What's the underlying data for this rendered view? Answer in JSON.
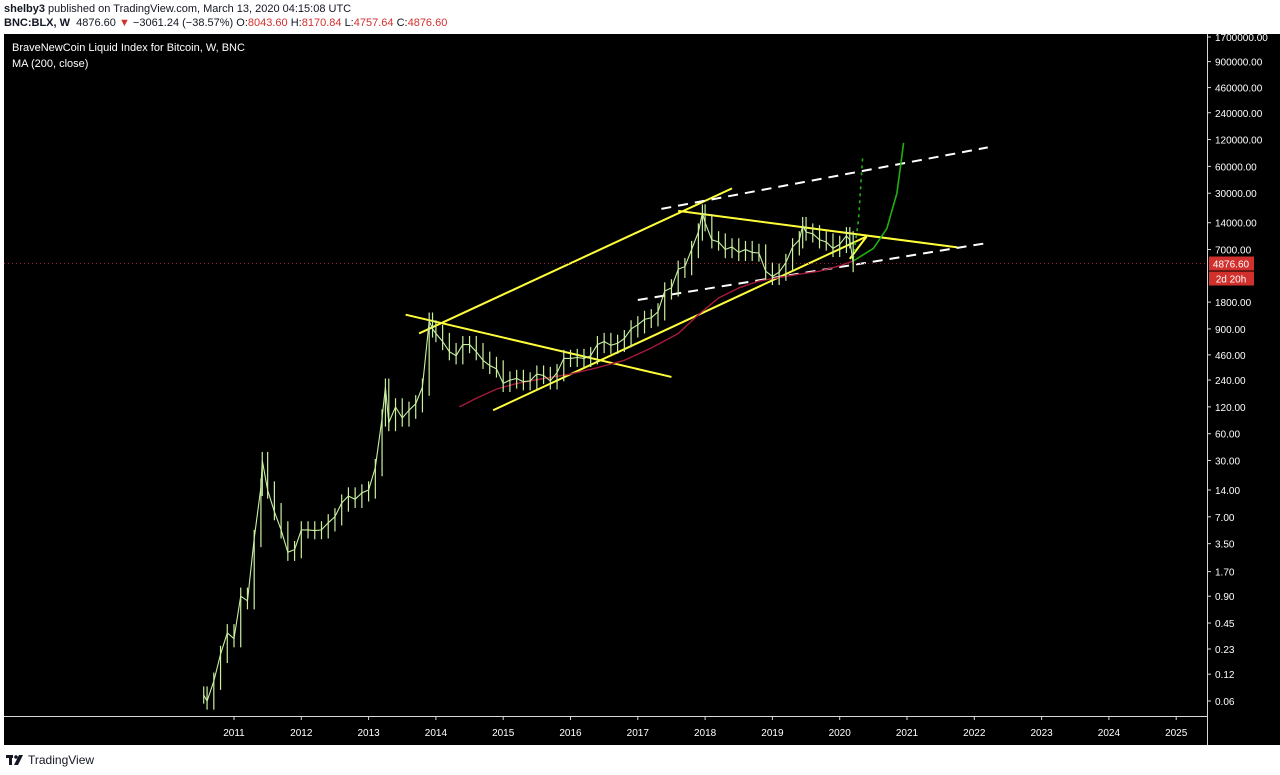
{
  "header": {
    "author": "shelby3",
    "published_text": "published on TradingView.com, March 13, 2020 04:15:08 UTC",
    "symbol": "BNC:BLX, W",
    "last": "4876.60",
    "change": "−3061.24 (−38.57%)",
    "o_label": "O:",
    "o_value": "8043.60",
    "h_label": "H:",
    "h_value": "8170.84",
    "l_label": "L:",
    "l_value": "4757.64",
    "c_label": "C:",
    "c_value": "4876.60"
  },
  "legend": {
    "title": "BraveNewCoin Liquid Index for Bitcoin, W, BNC",
    "indicator": "MA (200, close)"
  },
  "price_label": {
    "value": "4876.60",
    "countdown": "2d 20h",
    "color": "#d0312d"
  },
  "footer": {
    "brand": "TradingView"
  },
  "colors": {
    "background": "#000000",
    "axis_text": "#ffffff",
    "trendline": "#ffff3a",
    "dashed": "#ffffff",
    "projection": "#22b010",
    "ma": "#a31a3a",
    "candle": "#c8f0a0"
  },
  "chart_data": {
    "type": "line",
    "title": "BraveNewCoin Liquid Index for Bitcoin, W, BNC",
    "y_scale": "log",
    "y_ticks": [
      1700000,
      900000,
      460000,
      240000,
      120000,
      60000,
      30000,
      14000,
      7000,
      1800,
      900,
      460,
      240,
      120,
      60,
      30,
      14,
      7,
      3.5,
      1.7,
      0.9,
      0.45,
      0.23,
      0.12,
      0.06
    ],
    "y_tick_labels": [
      "1700000.00",
      "900000.00",
      "460000.00",
      "240000.00",
      "120000.00",
      "60000.00",
      "30000.00",
      "14000.00",
      "7000.00",
      "1800.00",
      "900.00",
      "460.00",
      "240.00",
      "120.00",
      "60.00",
      "30.00",
      "14.00",
      "7.00",
      "3.50",
      "1.70",
      "0.90",
      "0.45",
      "0.23",
      "0.12",
      "0.06"
    ],
    "x_ticks": [
      2011,
      2012,
      2013,
      2014,
      2015,
      2016,
      2017,
      2018,
      2019,
      2020,
      2021,
      2022,
      2023,
      2024,
      2025
    ],
    "x_tick_labels": [
      "2011",
      "2012",
      "2013",
      "2014",
      "2015",
      "2016",
      "2017",
      "2018",
      "2019",
      "2020",
      "2021",
      "2022",
      "2023",
      "2024",
      "2025"
    ],
    "series": [
      {
        "key": "price",
        "values": [
          [
            2010.55,
            0.07
          ],
          [
            2010.6,
            0.06
          ],
          [
            2010.7,
            0.1
          ],
          [
            2010.8,
            0.2
          ],
          [
            2010.9,
            0.35
          ],
          [
            2011.0,
            0.3
          ],
          [
            2011.1,
            0.9
          ],
          [
            2011.2,
            0.8
          ],
          [
            2011.3,
            4
          ],
          [
            2011.4,
            15
          ],
          [
            2011.42,
            30
          ],
          [
            2011.5,
            14
          ],
          [
            2011.6,
            8
          ],
          [
            2011.7,
            5
          ],
          [
            2011.8,
            2.8
          ],
          [
            2011.9,
            3.0
          ],
          [
            2012.0,
            5
          ],
          [
            2012.1,
            5
          ],
          [
            2012.2,
            4.9
          ],
          [
            2012.3,
            5
          ],
          [
            2012.4,
            6
          ],
          [
            2012.5,
            7
          ],
          [
            2012.6,
            10
          ],
          [
            2012.7,
            12
          ],
          [
            2012.8,
            11
          ],
          [
            2012.9,
            13
          ],
          [
            2013.0,
            14
          ],
          [
            2013.1,
            25
          ],
          [
            2013.2,
            90
          ],
          [
            2013.25,
            200
          ],
          [
            2013.3,
            80
          ],
          [
            2013.4,
            120
          ],
          [
            2013.5,
            90
          ],
          [
            2013.6,
            110
          ],
          [
            2013.7,
            130
          ],
          [
            2013.8,
            200
          ],
          [
            2013.9,
            1100
          ],
          [
            2013.95,
            900
          ],
          [
            2014.0,
            800
          ],
          [
            2014.1,
            650
          ],
          [
            2014.2,
            500
          ],
          [
            2014.3,
            450
          ],
          [
            2014.4,
            600
          ],
          [
            2014.5,
            600
          ],
          [
            2014.6,
            500
          ],
          [
            2014.7,
            400
          ],
          [
            2014.8,
            350
          ],
          [
            2014.9,
            320
          ],
          [
            2015.0,
            220
          ],
          [
            2015.1,
            240
          ],
          [
            2015.2,
            250
          ],
          [
            2015.3,
            230
          ],
          [
            2015.4,
            235
          ],
          [
            2015.5,
            280
          ],
          [
            2015.6,
            270
          ],
          [
            2015.7,
            235
          ],
          [
            2015.8,
            290
          ],
          [
            2015.9,
            420
          ],
          [
            2016.0,
            420
          ],
          [
            2016.1,
            430
          ],
          [
            2016.2,
            420
          ],
          [
            2016.3,
            450
          ],
          [
            2016.4,
            600
          ],
          [
            2016.5,
            650
          ],
          [
            2016.6,
            590
          ],
          [
            2016.7,
            620
          ],
          [
            2016.8,
            700
          ],
          [
            2016.9,
            900
          ],
          [
            2017.0,
            1000
          ],
          [
            2017.1,
            1150
          ],
          [
            2017.2,
            1200
          ],
          [
            2017.3,
            1400
          ],
          [
            2017.4,
            2400
          ],
          [
            2017.5,
            2600
          ],
          [
            2017.6,
            4200
          ],
          [
            2017.7,
            4500
          ],
          [
            2017.8,
            7000
          ],
          [
            2017.9,
            11000
          ],
          [
            2017.96,
            18000
          ],
          [
            2018.0,
            14000
          ],
          [
            2018.1,
            9000
          ],
          [
            2018.2,
            8500
          ],
          [
            2018.3,
            7000
          ],
          [
            2018.4,
            7500
          ],
          [
            2018.5,
            6500
          ],
          [
            2018.6,
            7000
          ],
          [
            2018.7,
            6500
          ],
          [
            2018.8,
            6400
          ],
          [
            2018.9,
            4000
          ],
          [
            2019.0,
            3500
          ],
          [
            2019.1,
            3900
          ],
          [
            2019.2,
            5000
          ],
          [
            2019.3,
            7500
          ],
          [
            2019.4,
            9000
          ],
          [
            2019.45,
            13000
          ],
          [
            2019.5,
            11000
          ],
          [
            2019.6,
            10500
          ],
          [
            2019.7,
            9000
          ],
          [
            2019.8,
            8500
          ],
          [
            2019.9,
            7200
          ],
          [
            2020.0,
            8000
          ],
          [
            2020.1,
            10000
          ],
          [
            2020.15,
            9000
          ],
          [
            2020.2,
            4876.6
          ]
        ]
      },
      {
        "name": "MA (200, close)",
        "key": "ma",
        "values": [
          [
            2014.35,
            120
          ],
          [
            2014.6,
            150
          ],
          [
            2014.9,
            190
          ],
          [
            2015.2,
            220
          ],
          [
            2015.6,
            250
          ],
          [
            2016.0,
            280
          ],
          [
            2016.4,
            330
          ],
          [
            2016.8,
            400
          ],
          [
            2017.2,
            550
          ],
          [
            2017.6,
            800
          ],
          [
            2017.9,
            1300
          ],
          [
            2018.2,
            2000
          ],
          [
            2018.5,
            2600
          ],
          [
            2018.8,
            3100
          ],
          [
            2019.1,
            3400
          ],
          [
            2019.4,
            3700
          ],
          [
            2019.7,
            4000
          ],
          [
            2020.0,
            4600
          ],
          [
            2020.2,
            5200
          ]
        ]
      }
    ],
    "annotations": {
      "yellow_lines": [
        [
          [
            2013.75,
            800
          ],
          [
            2018.4,
            34000
          ]
        ],
        [
          [
            2013.55,
            1300
          ],
          [
            2017.5,
            260
          ]
        ],
        [
          [
            2014.85,
            110
          ],
          [
            2020.4,
            9800
          ]
        ],
        [
          [
            2017.6,
            19000
          ],
          [
            2021.75,
            7400
          ]
        ],
        [
          [
            2020.15,
            5500
          ],
          [
            2020.4,
            9800
          ]
        ]
      ],
      "white_dashed_lines": [
        [
          [
            2017.35,
            20000
          ],
          [
            2022.2,
            98000
          ]
        ],
        [
          [
            2017.0,
            1900
          ],
          [
            2022.2,
            8300
          ]
        ]
      ],
      "green_projection": [
        [
          2020.2,
          5200
        ],
        [
          2020.5,
          7200
        ],
        [
          2020.7,
          12000
        ],
        [
          2020.85,
          30000
        ],
        [
          2020.95,
          110000
        ]
      ],
      "green_dotted": [
        [
          2020.2,
          5500
        ],
        [
          2020.28,
          15000
        ],
        [
          2020.34,
          75000
        ]
      ]
    }
  }
}
